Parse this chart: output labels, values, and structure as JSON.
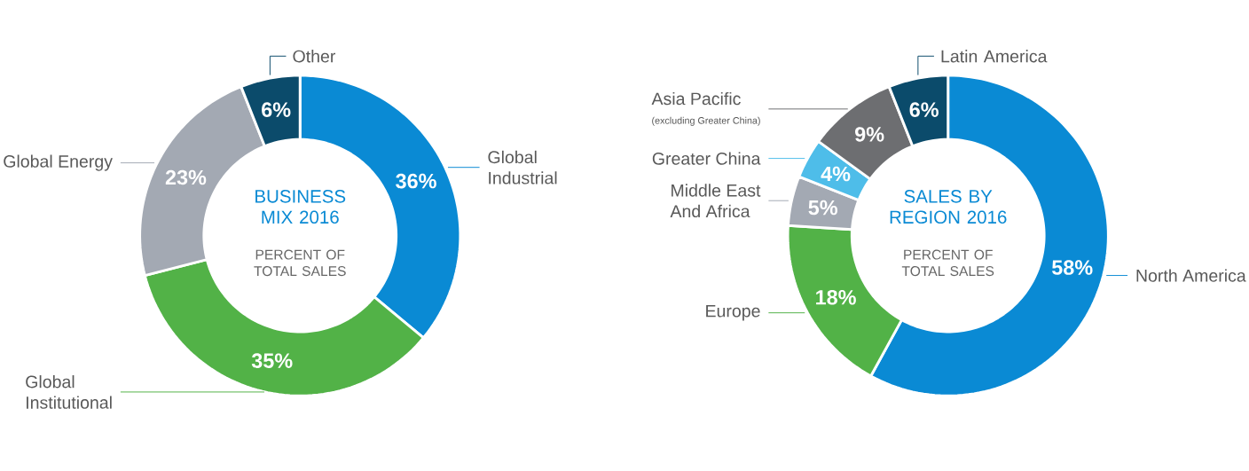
{
  "chart_data": [
    {
      "type": "donut",
      "title": "BUSINESS MIX 2016",
      "subtitle": "PERCENT OF TOTAL SALES",
      "categories": [
        "Global Industrial",
        "Global Institutional",
        "Global Energy",
        "Other"
      ],
      "values": [
        36,
        35,
        23,
        6
      ],
      "colors": [
        "#0a8ad4",
        "#52b247",
        "#a3a9b3",
        "#0b4b6b"
      ],
      "value_labels": [
        "36%",
        "35%",
        "23%",
        "6%"
      ]
    },
    {
      "type": "donut",
      "title": "SALES BY REGION 2016",
      "subtitle": "PERCENT OF TOTAL SALES",
      "categories": [
        "North America",
        "Europe",
        "Middle East And Africa",
        "Greater China",
        "Asia Pacific",
        "Latin America"
      ],
      "values": [
        58,
        18,
        5,
        4,
        9,
        6
      ],
      "colors": [
        "#0a8ad4",
        "#52b247",
        "#a3a9b3",
        "#4ebde9",
        "#6d6e71",
        "#0b4b6b"
      ],
      "value_labels": [
        "58%",
        "18%",
        "5%",
        "4%",
        "9%",
        "6%"
      ],
      "annotations": [
        "(excluding Greater China)"
      ]
    }
  ]
}
